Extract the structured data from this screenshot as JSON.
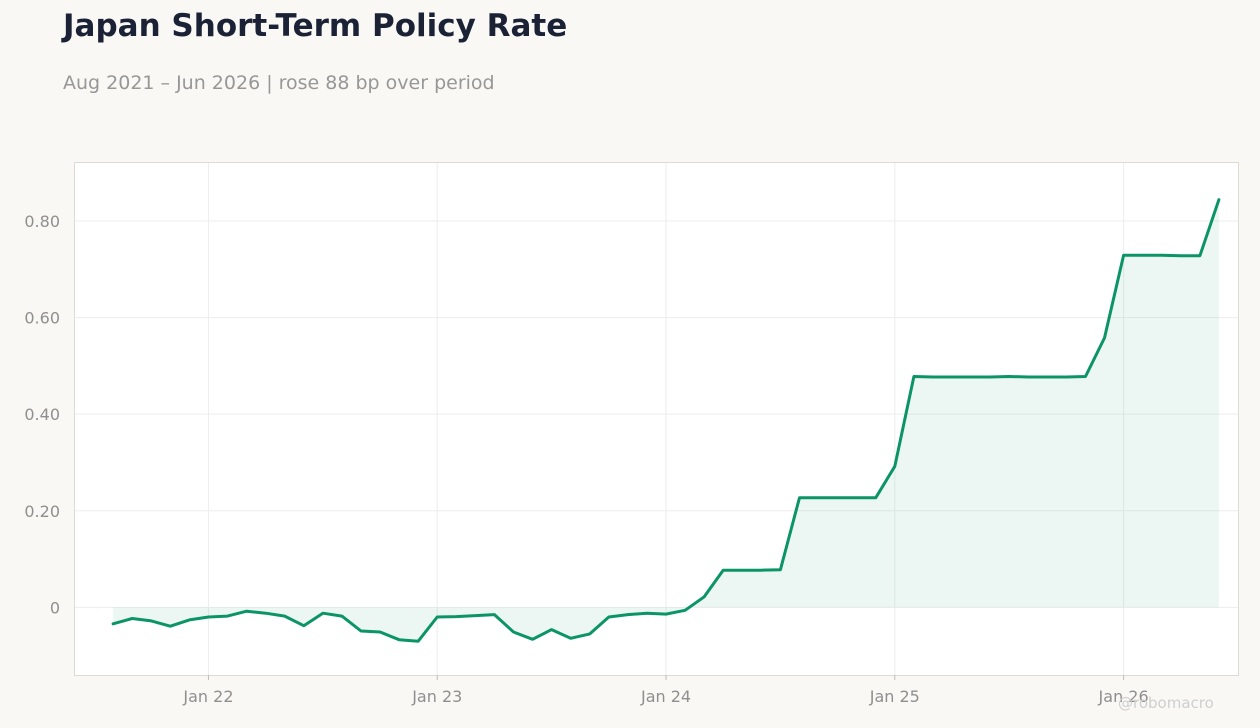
{
  "header": {
    "title": "Japan Short-Term Policy Rate",
    "subtitle": "Aug 2021 – Jun 2026 | rose 88 bp over period"
  },
  "watermark": "@robomacro",
  "colors": {
    "line": "#0b9466",
    "fill": "#0b9466",
    "grid": "#ededed",
    "frame": "#dcdcd6",
    "background": "#f9f8f5",
    "plot_background": "#ffffff"
  },
  "chart_data": {
    "type": "area",
    "title": "Japan Short-Term Policy Rate",
    "subtitle": "Aug 2021 – Jun 2026 | rose 88 bp over period",
    "xlabel": "",
    "ylabel": "",
    "grid": true,
    "ylim": [
      -0.14,
      0.92
    ],
    "xlim": [
      "2021-06",
      "2026-07"
    ],
    "yticks": [
      0,
      0.2,
      0.4,
      0.6,
      0.8
    ],
    "ytick_labels": [
      "0",
      "0.20",
      "0.40",
      "0.60",
      "0.80"
    ],
    "xticks": [
      "2022-01",
      "2023-01",
      "2024-01",
      "2025-01",
      "2026-01"
    ],
    "xtick_labels": [
      "Jan 22",
      "Jan 23",
      "Jan 24",
      "Jan 25",
      "Jan 26"
    ],
    "series": [
      {
        "x": [
          "2021-08",
          "2021-09",
          "2021-10",
          "2021-11",
          "2021-12",
          "2022-01",
          "2022-02",
          "2022-03",
          "2022-04",
          "2022-05",
          "2022-06",
          "2022-07",
          "2022-08",
          "2022-09",
          "2022-10",
          "2022-11",
          "2022-12",
          "2023-01",
          "2023-02",
          "2023-03",
          "2023-04",
          "2023-05",
          "2023-06",
          "2023-07",
          "2023-08",
          "2023-09",
          "2023-10",
          "2023-11",
          "2023-12",
          "2024-01",
          "2024-02",
          "2024-03",
          "2024-04",
          "2024-05",
          "2024-06",
          "2024-07",
          "2024-08",
          "2024-09",
          "2024-10",
          "2024-11",
          "2024-12",
          "2025-01",
          "2025-02",
          "2025-03",
          "2025-04",
          "2025-05",
          "2025-06",
          "2025-07",
          "2025-08",
          "2025-09",
          "2025-10",
          "2025-11",
          "2025-12",
          "2026-01",
          "2026-02",
          "2026-03",
          "2026-04",
          "2026-05",
          "2026-06"
        ],
        "values": [
          -0.034,
          -0.023,
          -0.028,
          -0.039,
          -0.026,
          -0.02,
          -0.018,
          -0.008,
          -0.012,
          -0.018,
          -0.038,
          -0.012,
          -0.018,
          -0.049,
          -0.051,
          -0.067,
          -0.07,
          -0.02,
          -0.019,
          -0.017,
          -0.015,
          -0.051,
          -0.066,
          -0.046,
          -0.064,
          -0.055,
          -0.02,
          -0.015,
          -0.012,
          -0.014,
          -0.006,
          0.022,
          0.077,
          0.077,
          0.077,
          0.078,
          0.227,
          0.227,
          0.227,
          0.227,
          0.227,
          0.292,
          0.478,
          0.477,
          0.477,
          0.477,
          0.477,
          0.478,
          0.477,
          0.477,
          0.477,
          0.478,
          0.558,
          0.729,
          0.729,
          0.729,
          0.728,
          0.728,
          0.844
        ]
      }
    ]
  }
}
